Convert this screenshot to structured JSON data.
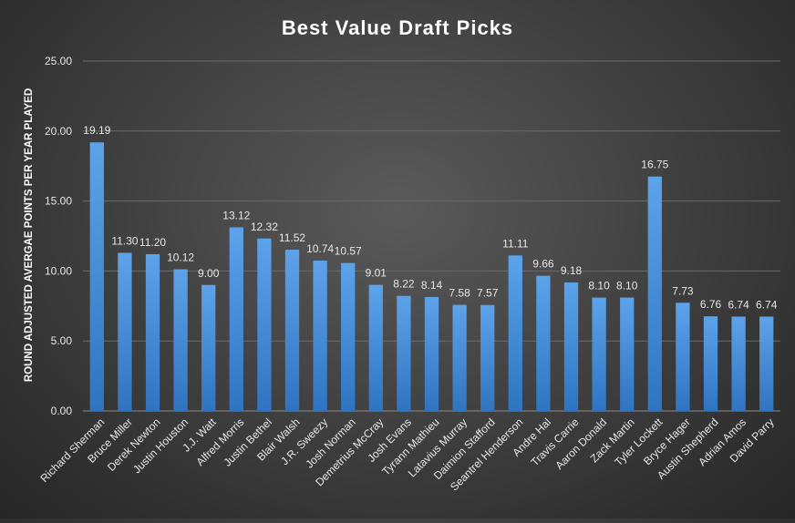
{
  "chart_data": {
    "type": "bar",
    "title": "Best Value Draft Picks",
    "xlabel": "",
    "ylabel": "ROUND ADJUSTED AVERGAE POINTS PER YEAR PLAYED",
    "ylim": [
      0,
      25
    ],
    "yticks": [
      "0.00",
      "5.00",
      "10.00",
      "15.00",
      "20.00",
      "25.00"
    ],
    "grid": true,
    "bar_color": "#4a8fd6",
    "categories": [
      "Richard Sherman",
      "Bruce Miller",
      "Derek Newton",
      "Justin Houston",
      "J.J. Watt",
      "Alfred Morris",
      "Justin Bethel",
      "Blair Walsh",
      "J.R. Sweezy",
      "Josh Norman",
      "Demetrius McCray",
      "Josh Evans",
      "Tyrann Mathieu",
      "Latavius Murray",
      "Daimion Stafford",
      "Seantrel Henderson",
      "Andre Hal",
      "Travis Carrie",
      "Aaron Donald",
      "Zack Martin",
      "Tyler Lockett",
      "Bryce Hager",
      "Austin Shepherd",
      "Adrian Amos",
      "David Parry"
    ],
    "values": [
      19.19,
      11.3,
      11.2,
      10.12,
      9.0,
      13.12,
      12.32,
      11.52,
      10.74,
      10.57,
      9.01,
      8.22,
      8.14,
      7.58,
      7.57,
      11.11,
      9.66,
      9.18,
      8.1,
      8.1,
      16.75,
      7.73,
      6.76,
      6.74,
      6.74
    ],
    "data_labels": [
      "19.19",
      "11.30",
      "11.20",
      "10.12",
      "9.00",
      "13.12",
      "12.32",
      "11.52",
      "10.74",
      "10.57",
      "9.01",
      "8.22",
      "8.14",
      "7.58",
      "7.57",
      "11.11",
      "9.66",
      "9.18",
      "8.10",
      "8.10",
      "16.75",
      "7.73",
      "6.76",
      "6.74",
      "6.74"
    ]
  }
}
